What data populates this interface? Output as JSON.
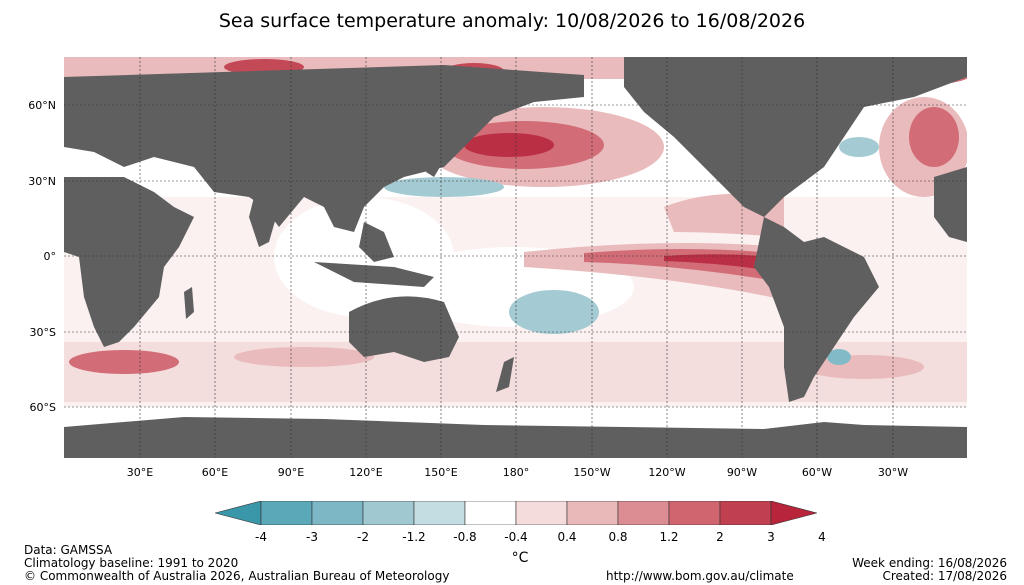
{
  "title": "Sea surface temperature anomaly: 10/08/2026 to 16/08/2026",
  "lat_labels": [
    "60°N",
    "30°N",
    "0°",
    "30°S",
    "60°S"
  ],
  "lon_labels": [
    "30°E",
    "60°E",
    "90°E",
    "120°E",
    "150°E",
    "180°",
    "150°W",
    "120°W",
    "90°W",
    "60°W",
    "30°W"
  ],
  "colorbar": {
    "ticks": [
      "-4",
      "-3",
      "-2",
      "-1.2",
      "-0.8",
      "-0.4",
      "0.4",
      "0.8",
      "1.2",
      "2",
      "3",
      "4"
    ],
    "colors": [
      "#3a97a9",
      "#5aa8b8",
      "#7db7c5",
      "#a0c8d1",
      "#c3dde3",
      "#ffffff",
      "#f4dcdc",
      "#e9b8b9",
      "#dc8d93",
      "#d0656f",
      "#c0404f",
      "#b8243a"
    ],
    "unit": "°C"
  },
  "footer": {
    "data": "Data: GAMSSA",
    "baseline": "Climatology baseline: 1991 to 2020",
    "copyright": "© Commonwealth of Australia 2026, Australian Bureau of Meteorology",
    "url": "http://www.bom.gov.au/climate",
    "week": "Week ending: 16/08/2026",
    "created": "Created: 17/08/2026"
  },
  "colors": {
    "land": "#5f5f5f",
    "ocean": "#ffffff"
  }
}
